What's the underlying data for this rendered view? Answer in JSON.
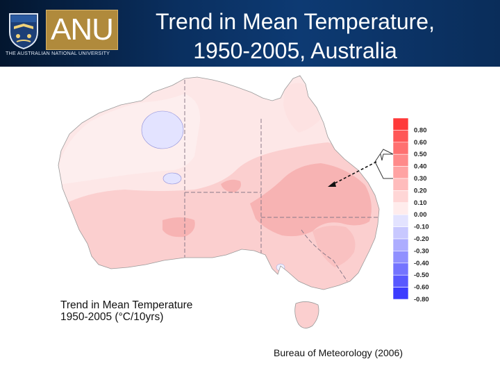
{
  "header": {
    "logo_text": "ANU",
    "university_name": "THE AUSTRALIAN NATIONAL UNIVERSITY",
    "title_line1": "Trend in Mean Temperature,",
    "title_line2": "1950-2005, Australia"
  },
  "map": {
    "caption_line1": "Trend in Mean Temperature",
    "caption_line2": "1950-2005 (°C/10yrs)",
    "legend": [
      {
        "label": "0.80",
        "color": "#ff3a3a"
      },
      {
        "label": "0.60",
        "color": "#ff5757"
      },
      {
        "label": "0.50",
        "color": "#ff7070"
      },
      {
        "label": "0.40",
        "color": "#ff8a8a"
      },
      {
        "label": "0.30",
        "color": "#ffa3a3"
      },
      {
        "label": "0.20",
        "color": "#ffbcbc"
      },
      {
        "label": "0.10",
        "color": "#ffd6d6"
      },
      {
        "label": "0.00",
        "color": "#ffecec"
      },
      {
        "label": "-0.10",
        "color": "#e3e3ff"
      },
      {
        "label": "-0.20",
        "color": "#c8c8ff"
      },
      {
        "label": "-0.30",
        "color": "#adadff"
      },
      {
        "label": "-0.40",
        "color": "#9090ff"
      },
      {
        "label": "-0.50",
        "color": "#7474ff"
      },
      {
        "label": "-0.60",
        "color": "#5858ff"
      },
      {
        "label": "-0.80",
        "color": "#3c3cff"
      }
    ]
  },
  "credit": "Bureau of Meteorology (2006)"
}
